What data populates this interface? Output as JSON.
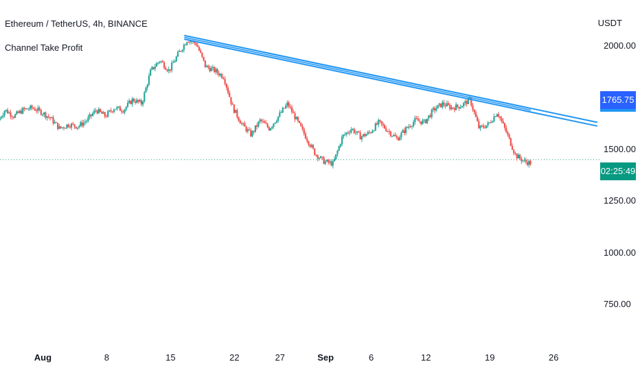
{
  "header": {
    "symbol_title": "Ethereum / TetherUS, 4h, BINANCE",
    "indicator_title": "Channel Take Profit"
  },
  "colors": {
    "up": "#26a69a",
    "down": "#ef5350",
    "channel": "#2196f3",
    "price_line": "#089981",
    "line_tag": "#2962ff"
  },
  "chart_data": {
    "type": "candlestick",
    "title": "Ethereum / TetherUS, 4h, BINANCE",
    "indicator": "Channel Take Profit",
    "y_unit": "USDT",
    "ylim": [
      565,
      2155
    ],
    "y_ticks": [
      {
        "value": 2000,
        "label": "2000.00"
      },
      {
        "value": 1500,
        "label": "1500.00"
      },
      {
        "value": 1250,
        "label": "1250.00"
      },
      {
        "value": 1000,
        "label": "1000.00"
      },
      {
        "value": 750,
        "label": "750.00"
      }
    ],
    "x_ticks": [
      {
        "label": "Aug",
        "day": 0,
        "bold": true
      },
      {
        "label": "8",
        "day": 7
      },
      {
        "label": "15",
        "day": 14
      },
      {
        "label": "22",
        "day": 21
      },
      {
        "label": "27",
        "day": 26
      },
      {
        "label": "Sep",
        "day": 31,
        "bold": true
      },
      {
        "label": "6",
        "day": 36
      },
      {
        "label": "12",
        "day": 42
      },
      {
        "label": "19",
        "day": 49
      },
      {
        "label": "26",
        "day": 56
      }
    ],
    "x_range_days": [
      -4.7,
      60.8
    ],
    "price_path": [
      [
        -4.7,
        1640
      ],
      [
        -4,
        1690
      ],
      [
        -3,
        1660
      ],
      [
        -2,
        1690
      ],
      [
        -1,
        1700
      ],
      [
        0,
        1680
      ],
      [
        1,
        1650
      ],
      [
        2,
        1600
      ],
      [
        3,
        1620
      ],
      [
        4,
        1610
      ],
      [
        5,
        1640
      ],
      [
        6,
        1690
      ],
      [
        7,
        1660
      ],
      [
        8,
        1700
      ],
      [
        9,
        1690
      ],
      [
        10,
        1740
      ],
      [
        11,
        1720
      ],
      [
        12,
        1880
      ],
      [
        13,
        1930
      ],
      [
        14,
        1880
      ],
      [
        15,
        1960
      ],
      [
        16,
        2030
      ],
      [
        17,
        2010
      ],
      [
        18,
        1900
      ],
      [
        19,
        1880
      ],
      [
        20,
        1850
      ],
      [
        21,
        1700
      ],
      [
        22,
        1620
      ],
      [
        23,
        1570
      ],
      [
        24,
        1640
      ],
      [
        25,
        1600
      ],
      [
        26,
        1660
      ],
      [
        27,
        1720
      ],
      [
        28,
        1640
      ],
      [
        29,
        1560
      ],
      [
        30,
        1480
      ],
      [
        31,
        1440
      ],
      [
        32,
        1430
      ],
      [
        33,
        1560
      ],
      [
        34,
        1600
      ],
      [
        35,
        1560
      ],
      [
        36,
        1580
      ],
      [
        37,
        1630
      ],
      [
        38,
        1590
      ],
      [
        39,
        1550
      ],
      [
        40,
        1600
      ],
      [
        41,
        1640
      ],
      [
        42,
        1630
      ],
      [
        43,
        1690
      ],
      [
        44,
        1720
      ],
      [
        45,
        1700
      ],
      [
        46,
        1710
      ],
      [
        47,
        1740
      ],
      [
        48,
        1600
      ],
      [
        49,
        1620
      ],
      [
        50,
        1680
      ],
      [
        51,
        1580
      ],
      [
        52,
        1470
      ],
      [
        53,
        1440
      ],
      [
        53.5,
        1435
      ]
    ],
    "channel": {
      "start": {
        "day": 15.5,
        "value": 2050
      },
      "end": {
        "day": 60.8,
        "value": 1630
      },
      "offset": 18,
      "band_end_day": 53.5
    },
    "last_price": 1450,
    "line_label": "1765.75",
    "countdown_label": "02:25:49"
  }
}
